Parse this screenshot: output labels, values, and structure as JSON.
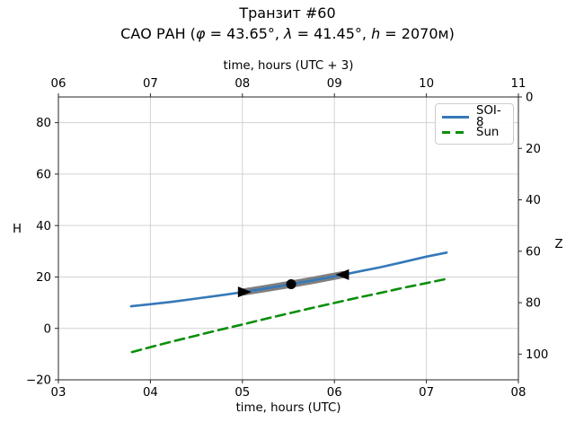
{
  "chart_data": {
    "type": "line",
    "title": "Транзит #60",
    "subtitle": "САО РАН (φ = 43.65°, λ = 41.45°, h = 2070м)",
    "subtitle_parts": [
      {
        "text": "САО РАН (",
        "italic": false
      },
      {
        "text": "φ",
        "italic": true
      },
      {
        "text": " = 43.65°, ",
        "italic": false
      },
      {
        "text": "λ",
        "italic": true
      },
      {
        "text": " = 41.45°, ",
        "italic": false
      },
      {
        "text": "h",
        "italic": true
      },
      {
        "text": " = 2070м)",
        "italic": false
      }
    ],
    "xlabel_top": "time, hours (UTC + 3)",
    "xlabel_bottom": "time, hours (UTC)",
    "ylabel_left": "H",
    "ylabel_right": "Z",
    "xlim": [
      3,
      8
    ],
    "ylim_left": [
      -20,
      90
    ],
    "right_axis_relation": "Z = 90 - H",
    "x_tick_hours": [
      3,
      4,
      5,
      6,
      7,
      8
    ],
    "x_ticks_bottom": [
      "03",
      "04",
      "05",
      "06",
      "07",
      "08"
    ],
    "x_ticks_top": [
      "06",
      "07",
      "08",
      "09",
      "10",
      "11"
    ],
    "y_tick_values_left": [
      -20,
      0,
      20,
      40,
      60,
      80
    ],
    "y_ticks_left": [
      "−20",
      "0",
      "20",
      "40",
      "60",
      "80"
    ],
    "y_tick_values_right": [
      0,
      20,
      40,
      60,
      80,
      100
    ],
    "y_ticks_right": [
      "0",
      "20",
      "40",
      "60",
      "80",
      "100"
    ],
    "x_grid_hours": [
      4,
      5,
      6,
      7
    ],
    "y_grid_values": [
      0,
      20,
      40,
      60,
      80
    ],
    "grid_on": true,
    "grid_color": "#d3d3d3",
    "spine_color": "#262626",
    "background_color": "#ffffff",
    "legend_position": "upper right",
    "series": [
      {
        "name": "SOI-8",
        "color": "#3579b8",
        "style": "solid",
        "points": [
          [
            3.79,
            8.6
          ],
          [
            4.0,
            9.4
          ],
          [
            4.25,
            10.4
          ],
          [
            4.5,
            11.6
          ],
          [
            4.75,
            12.8
          ],
          [
            5.0,
            14.1
          ],
          [
            5.25,
            15.5
          ],
          [
            5.5,
            17.0
          ],
          [
            5.75,
            18.6
          ],
          [
            6.0,
            20.2
          ],
          [
            6.25,
            22.0
          ],
          [
            6.5,
            23.8
          ],
          [
            6.75,
            25.8
          ],
          [
            7.0,
            27.9
          ],
          [
            7.22,
            29.5
          ]
        ]
      },
      {
        "name": "Sun",
        "color": "#0a8f0a",
        "style": "dashed",
        "points": [
          [
            3.8,
            -9.2
          ],
          [
            4.0,
            -7.3
          ],
          [
            4.25,
            -5.0
          ],
          [
            4.5,
            -2.8
          ],
          [
            4.75,
            -0.6
          ],
          [
            5.0,
            1.5
          ],
          [
            5.25,
            3.7
          ],
          [
            5.5,
            5.8
          ],
          [
            5.75,
            7.9
          ],
          [
            6.0,
            9.9
          ],
          [
            6.25,
            11.9
          ],
          [
            6.5,
            13.8
          ],
          [
            6.75,
            15.8
          ],
          [
            7.0,
            17.6
          ],
          [
            7.2,
            19.1
          ]
        ]
      }
    ],
    "transit": {
      "band_color": "#7f7f7f",
      "marker_color": "#000000",
      "band_points": [
        [
          5.02,
          14.2
        ],
        [
          5.25,
          15.5
        ],
        [
          5.5,
          17.0
        ],
        [
          5.75,
          18.6
        ],
        [
          6.09,
          20.9
        ]
      ],
      "start": [
        5.02,
        14.2
      ],
      "mid": [
        5.53,
        17.2
      ],
      "end": [
        6.09,
        20.9
      ]
    }
  }
}
